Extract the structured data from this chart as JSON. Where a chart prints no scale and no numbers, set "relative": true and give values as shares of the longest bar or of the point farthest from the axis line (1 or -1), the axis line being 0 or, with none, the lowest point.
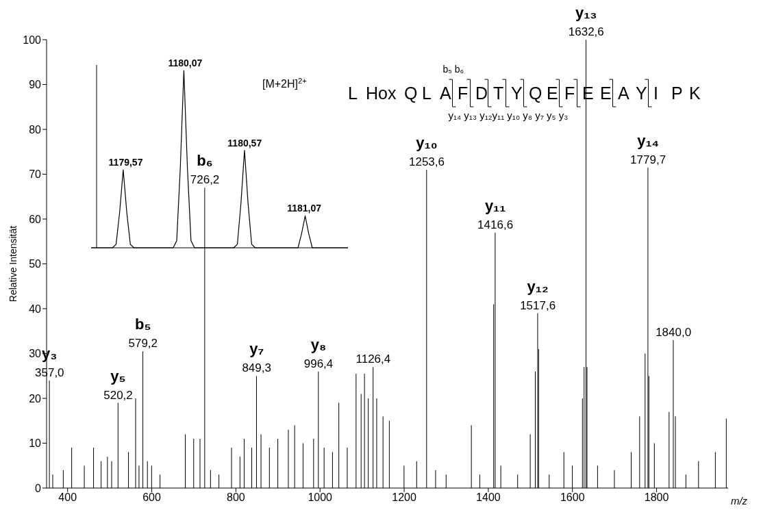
{
  "chart_data": [
    {
      "type": "bar",
      "xlabel": "m/z",
      "ylabel": "Relative Intensität",
      "color": "#000000",
      "x": [
        357.0,
        365,
        390,
        410,
        440,
        462,
        480,
        495,
        505,
        520.2,
        545,
        562,
        570,
        579.2,
        590,
        600,
        620,
        680,
        700,
        715,
        726.2,
        740,
        760,
        790,
        810,
        820,
        838,
        849.3,
        860,
        880,
        900,
        925,
        940,
        960,
        985,
        996.4,
        1010,
        1030,
        1045,
        1065,
        1086,
        1098,
        1106,
        1115,
        1126.4,
        1135,
        1150,
        1165,
        1200,
        1230,
        1253.6,
        1275,
        1300,
        1360,
        1380,
        1413,
        1416.6,
        1430,
        1470,
        1500,
        1512,
        1517.6,
        1520,
        1545,
        1580,
        1600,
        1624,
        1628,
        1632.6,
        1635,
        1660,
        1700,
        1740,
        1760,
        1773,
        1779.7,
        1782,
        1795,
        1830,
        1840.0,
        1845,
        1870,
        1900,
        1940,
        1966
      ],
      "values": [
        24,
        3,
        4,
        9,
        5,
        9,
        6,
        7,
        6,
        19,
        8,
        20,
        5,
        30.5,
        6,
        5,
        3,
        12,
        11,
        11,
        67,
        4,
        3,
        9,
        7,
        11,
        9,
        25,
        12,
        9,
        11,
        13,
        14,
        10,
        11,
        26,
        9,
        8,
        19,
        9,
        25.5,
        21,
        25.5,
        20,
        27,
        20,
        16,
        15,
        5,
        6,
        71,
        4,
        3,
        14,
        3,
        41,
        57,
        5,
        3,
        12,
        26,
        39,
        31,
        3,
        8,
        5,
        20,
        27,
        100,
        27,
        5,
        4,
        8,
        16,
        30,
        71.5,
        25,
        10,
        17,
        33,
        16,
        3,
        6,
        8,
        15.5
      ],
      "xlim": [
        350,
        1970
      ],
      "xticks": [
        400,
        600,
        800,
        1000,
        1200,
        1400,
        1600,
        1800
      ],
      "ylim": [
        0,
        100
      ],
      "yticks": [
        0,
        10,
        20,
        30,
        40,
        50,
        60,
        70,
        80,
        90,
        100
      ],
      "grid": false,
      "legend": false,
      "annotations": [
        {
          "text": "y₃",
          "x": 357.0,
          "y": 24
        },
        {
          "text": "357,0",
          "x": 357.0,
          "y": 24
        },
        {
          "text": "y₅",
          "x": 520.2,
          "y": 19
        },
        {
          "text": "520,2",
          "x": 520.2,
          "y": 19
        },
        {
          "text": "b₅",
          "x": 579.2,
          "y": 30.5
        },
        {
          "text": "579,2",
          "x": 579.2,
          "y": 30.5
        },
        {
          "text": "b₆",
          "x": 726.2,
          "y": 67
        },
        {
          "text": "726,2",
          "x": 726.2,
          "y": 67
        },
        {
          "text": "y₇",
          "x": 849.3,
          "y": 25
        },
        {
          "text": "849,3",
          "x": 849.3,
          "y": 25
        },
        {
          "text": "y₈",
          "x": 996.4,
          "y": 26
        },
        {
          "text": "996,4",
          "x": 996.4,
          "y": 26
        },
        {
          "text": "1126,4",
          "x": 1126.4,
          "y": 27
        },
        {
          "text": "y₁₀",
          "x": 1253.6,
          "y": 71
        },
        {
          "text": "1253,6",
          "x": 1253.6,
          "y": 71
        },
        {
          "text": "y₁₁",
          "x": 1416.6,
          "y": 57
        },
        {
          "text": "1416,6",
          "x": 1416.6,
          "y": 57
        },
        {
          "text": "y₁₂",
          "x": 1517.6,
          "y": 39
        },
        {
          "text": "1517,6",
          "x": 1517.6,
          "y": 39
        },
        {
          "text": "y₁₃",
          "x": 1632.6,
          "y": 100
        },
        {
          "text": "1632,6",
          "x": 1632.6,
          "y": 100
        },
        {
          "text": "y₁₄",
          "x": 1779.7,
          "y": 71.5
        },
        {
          "text": "1779,7",
          "x": 1779.7,
          "y": 71.5
        },
        {
          "text": "1840,0",
          "x": 1840.0,
          "y": 33
        },
        "b₅ b₆",
        "L Hox Q L A F D T Y Q E F E E A Y I P K",
        "y₁₄ y₁₃ y₁₂y₁₁ y₁₀ y₈ y₇ y₅ y₃"
      ]
    },
    {
      "type": "line",
      "relative": true,
      "color": "#000000",
      "tick_labels": false,
      "marker": "none",
      "categories": [
        null,
        null,
        null,
        null,
        null,
        null,
        null,
        null,
        null,
        null,
        null,
        null,
        null,
        null,
        null,
        null,
        null,
        null,
        null,
        null,
        null,
        null,
        null,
        null,
        null,
        null,
        null,
        null,
        null,
        null,
        null,
        null,
        null,
        null,
        null,
        null,
        null,
        null,
        null,
        null,
        null,
        null,
        null,
        null,
        null,
        null,
        null,
        null,
        null,
        null,
        null,
        null,
        null,
        null,
        null,
        null,
        null,
        null,
        null,
        null,
        null,
        null,
        null,
        null,
        null,
        null,
        null,
        null,
        null,
        null,
        null,
        null,
        null
      ],
      "values": [
        0,
        0,
        0,
        0,
        0,
        0,
        0,
        0.02,
        0.2,
        0.44,
        0.2,
        0.02,
        0,
        0,
        0,
        0,
        0,
        0,
        0,
        0,
        0,
        0,
        0,
        0,
        0.04,
        0.45,
        1,
        0.45,
        0.04,
        0,
        0,
        0,
        0,
        0,
        0,
        0,
        0,
        0,
        0,
        0,
        0,
        0.02,
        0.25,
        0.55,
        0.25,
        0.02,
        0,
        0,
        0,
        0,
        0,
        0,
        0,
        0,
        0,
        0,
        0,
        0,
        0,
        0.08,
        0.18,
        0.08,
        0,
        0,
        0,
        0,
        0,
        0,
        0,
        0,
        0,
        0,
        0
      ],
      "annotations": [
        {
          "text": "1179,57",
          "y": 0.44
        },
        {
          "text": "1180,07",
          "y": 1
        },
        {
          "text": "1180,57",
          "y": 0.55
        },
        {
          "text": "1181,07",
          "y": 0.18
        },
        "[M+2H]$^{2+}$"
      ]
    }
  ]
}
